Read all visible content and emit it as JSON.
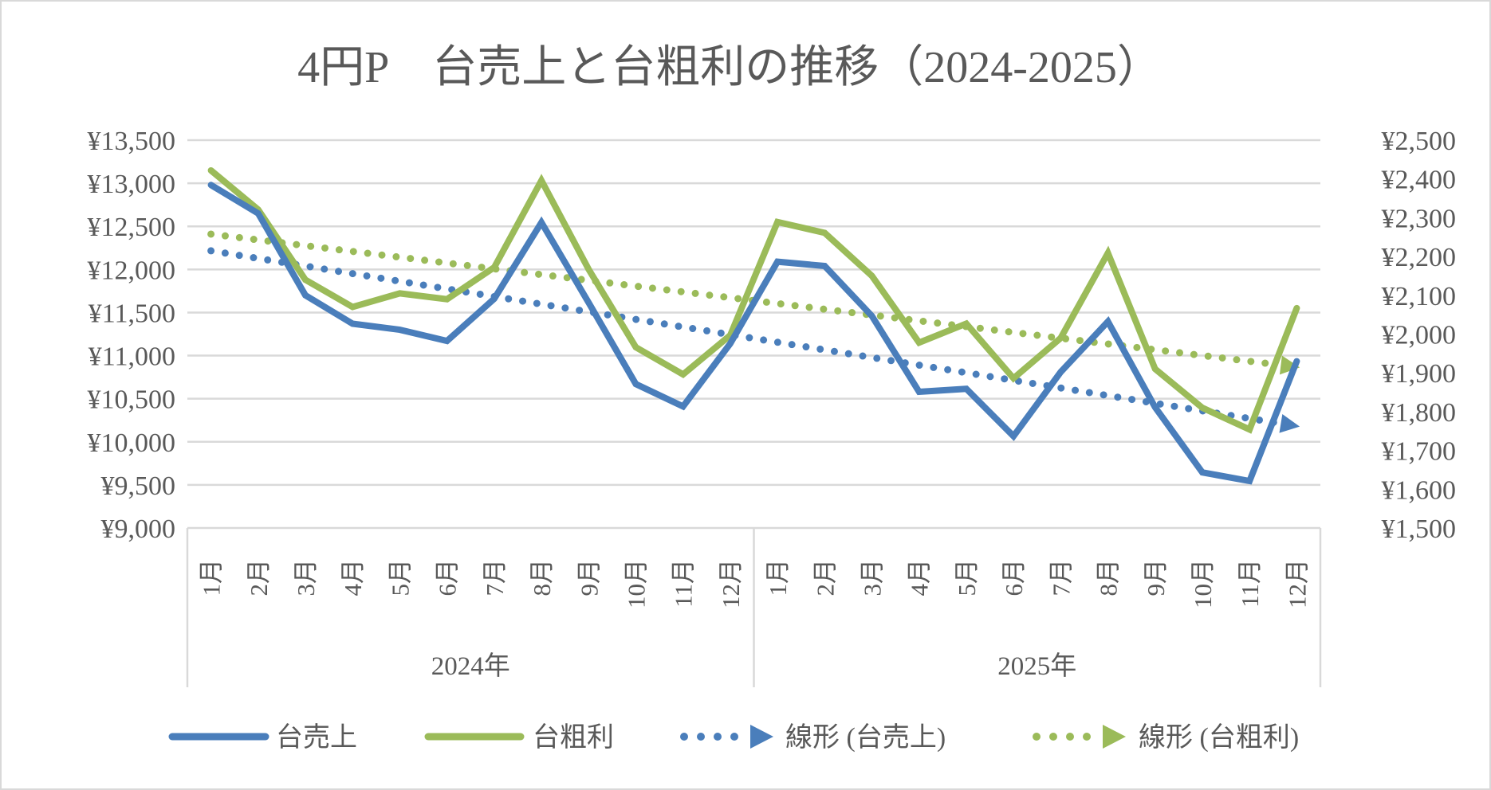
{
  "chart_data": {
    "type": "line",
    "title": "4円P　台売上と台粗利の推移（2024-2025）",
    "groups": [
      {
        "label": "2024年",
        "months": [
          "1月",
          "2月",
          "3月",
          "4月",
          "5月",
          "6月",
          "7月",
          "8月",
          "9月",
          "10月",
          "11月",
          "12月"
        ]
      },
      {
        "label": "2025年",
        "months": [
          "1月",
          "2月",
          "3月",
          "4月",
          "5月",
          "6月",
          "7月",
          "8月",
          "9月",
          "10月",
          "11月",
          "12月"
        ]
      }
    ],
    "y_left": {
      "ticks": [
        "¥13,500",
        "¥13,000",
        "¥12,500",
        "¥12,000",
        "¥11,500",
        "¥11,000",
        "¥10,500",
        "¥10,000",
        "¥9,500",
        "¥9,000"
      ],
      "ylim": [
        9000,
        13500
      ],
      "step": 500
    },
    "y_right": {
      "ticks": [
        "¥2,500",
        "¥2,400",
        "¥2,300",
        "¥2,200",
        "¥2,100",
        "¥2,000",
        "¥1,900",
        "¥1,800",
        "¥1,700",
        "¥1,600",
        "¥1,500"
      ],
      "ylim": [
        1500,
        2500
      ],
      "step": 100
    },
    "grid": true,
    "legend_position": "bottom",
    "series": [
      {
        "name": "台売上",
        "axis": "left",
        "color": "#4a7ebb",
        "values": [
          12980,
          12650,
          11700,
          11370,
          11300,
          11170,
          11660,
          12545,
          11615,
          10670,
          10410,
          11140,
          12090,
          12040,
          11460,
          10580,
          10615,
          10065,
          10810,
          11395,
          10400,
          9645,
          9545,
          10935
        ]
      },
      {
        "name": "台粗利",
        "axis": "right",
        "color": "#9bbb59",
        "values": [
          2422,
          2321,
          2140,
          2070,
          2105,
          2090,
          2172,
          2396,
          2167,
          1966,
          1896,
          1997,
          2289,
          2261,
          2150,
          1978,
          2027,
          1886,
          1990,
          2209,
          1910,
          1810,
          1754,
          2067
        ]
      }
    ],
    "trendlines": [
      {
        "name": "線形 (台売上)",
        "of": "台売上",
        "type": "linear",
        "color": "#4a7ebb"
      },
      {
        "name": "線形 (台粗利)",
        "of": "台粗利",
        "type": "linear",
        "color": "#9bbb59"
      }
    ]
  }
}
